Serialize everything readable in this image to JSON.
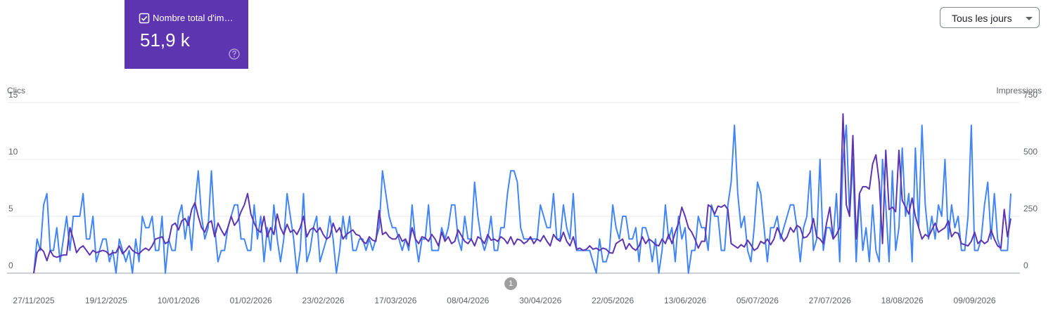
{
  "card": {
    "label": "Nombre total d'im…",
    "value": "51,9 k"
  },
  "dropdown": "Tous les jours",
  "chart_data": {
    "type": "line",
    "x": [
      "27/11/2025",
      "28/11/2025",
      "29/11/2025",
      "30/11/2025",
      "01/12/2025",
      "02/12/2025",
      "03/12/2025",
      "04/12/2025",
      "05/12/2025",
      "06/12/2025",
      "07/12/2025",
      "08/12/2025",
      "09/12/2025",
      "10/12/2025",
      "11/12/2025",
      "12/12/2025",
      "13/12/2025",
      "14/12/2025",
      "15/12/2025",
      "16/12/2025",
      "17/12/2025",
      "18/12/2025",
      "19/12/2025",
      "20/12/2025",
      "21/12/2025",
      "22/12/2025",
      "23/12/2025",
      "24/12/2025",
      "25/12/2025",
      "26/12/2025",
      "27/12/2025",
      "28/12/2025",
      "29/12/2025",
      "30/12/2025",
      "31/12/2025",
      "01/01/2026",
      "02/01/2026",
      "03/01/2026",
      "04/01/2026",
      "05/01/2026",
      "06/01/2026",
      "07/01/2026",
      "08/01/2026",
      "09/01/2026",
      "10/01/2026",
      "11/01/2026",
      "12/01/2026",
      "13/01/2026",
      "14/01/2026",
      "15/01/2026",
      "16/01/2026",
      "17/01/2026",
      "18/01/2026",
      "19/01/2026",
      "20/01/2026",
      "21/01/2026",
      "22/01/2026",
      "23/01/2026",
      "24/01/2026",
      "25/01/2026",
      "26/01/2026",
      "27/01/2026",
      "28/01/2026",
      "29/01/2026",
      "30/01/2026",
      "31/01/2026",
      "01/02/2026",
      "02/02/2026",
      "03/02/2026",
      "04/02/2026",
      "05/02/2026",
      "06/02/2026",
      "07/02/2026",
      "08/02/2026",
      "09/02/2026",
      "10/02/2026",
      "11/02/2026",
      "12/02/2026",
      "13/02/2026",
      "14/02/2026",
      "15/02/2026",
      "16/02/2026",
      "17/02/2026",
      "18/02/2026",
      "19/02/2026",
      "20/02/2026",
      "21/02/2026",
      "22/02/2026",
      "23/02/2026",
      "24/02/2026",
      "25/02/2026",
      "26/02/2026",
      "27/02/2026",
      "28/02/2026",
      "01/03/2026",
      "02/03/2026",
      "03/03/2026",
      "04/03/2026",
      "05/03/2026",
      "06/03/2026",
      "07/03/2026",
      "08/03/2026",
      "09/03/2026",
      "10/03/2026",
      "11/03/2026",
      "12/03/2026",
      "13/03/2026",
      "14/03/2026",
      "15/03/2026",
      "16/03/2026",
      "17/03/2026",
      "18/03/2026",
      "19/03/2026",
      "20/03/2026",
      "21/03/2026",
      "22/03/2026",
      "23/03/2026",
      "24/03/2026",
      "25/03/2026",
      "26/03/2026",
      "27/03/2026",
      "28/03/2026",
      "29/03/2026",
      "30/03/2026",
      "31/03/2026",
      "01/04/2026",
      "02/04/2026",
      "03/04/2026",
      "04/04/2026",
      "05/04/2026",
      "06/04/2026",
      "07/04/2026",
      "08/04/2026",
      "09/04/2026",
      "10/04/2026",
      "11/04/2026",
      "12/04/2026",
      "13/04/2026",
      "14/04/2026",
      "15/04/2026",
      "16/04/2026",
      "17/04/2026",
      "18/04/2026",
      "19/04/2026",
      "20/04/2026",
      "21/04/2026",
      "22/04/2026",
      "23/04/2026",
      "24/04/2026",
      "25/04/2026",
      "26/04/2026",
      "27/04/2026",
      "28/04/2026",
      "29/04/2026",
      "30/04/2026",
      "01/05/2026",
      "02/05/2026",
      "03/05/2026",
      "04/05/2026",
      "05/05/2026",
      "06/05/2026",
      "07/05/2026",
      "08/05/2026",
      "09/05/2026",
      "10/05/2026",
      "11/05/2026",
      "12/05/2026",
      "13/05/2026",
      "14/05/2026",
      "15/05/2026",
      "16/05/2026",
      "17/05/2026",
      "18/05/2026",
      "19/05/2026",
      "20/05/2026",
      "21/05/2026",
      "22/05/2026",
      "23/05/2026",
      "24/05/2026",
      "25/05/2026",
      "26/05/2026",
      "27/05/2026",
      "28/05/2026",
      "29/05/2026",
      "30/05/2026",
      "31/05/2026",
      "01/06/2026",
      "02/06/2026",
      "03/06/2026",
      "04/06/2026",
      "05/06/2026",
      "06/06/2026",
      "07/06/2026",
      "08/06/2026",
      "09/06/2026",
      "10/06/2026",
      "11/06/2026",
      "12/06/2026",
      "13/06/2026",
      "14/06/2026",
      "15/06/2026",
      "16/06/2026",
      "17/06/2026",
      "18/06/2026",
      "19/06/2026",
      "20/06/2026",
      "21/06/2026",
      "22/06/2026",
      "23/06/2026",
      "24/06/2026",
      "25/06/2026",
      "26/06/2026",
      "27/06/2026",
      "28/06/2026",
      "29/06/2026",
      "30/06/2026",
      "01/07/2026",
      "02/07/2026",
      "03/07/2026",
      "04/07/2026",
      "05/07/2026",
      "06/07/2026",
      "07/07/2026",
      "08/07/2026",
      "09/07/2026",
      "10/07/2026",
      "11/07/2026",
      "12/07/2026",
      "13/07/2026",
      "14/07/2026",
      "15/07/2026",
      "16/07/2026",
      "17/07/2026",
      "18/07/2026",
      "19/07/2026",
      "20/07/2026",
      "21/07/2026",
      "22/07/2026",
      "23/07/2026",
      "24/07/2026",
      "25/07/2026",
      "26/07/2026",
      "27/07/2026",
      "28/07/2026",
      "29/07/2026",
      "30/07/2026",
      "31/07/2026",
      "01/08/2026",
      "02/08/2026",
      "03/08/2026",
      "04/08/2026",
      "05/08/2026",
      "06/08/2026",
      "07/08/2026",
      "08/08/2026",
      "09/08/2026",
      "10/08/2026",
      "11/08/2026",
      "12/08/2026",
      "13/08/2026",
      "14/08/2026",
      "15/08/2026",
      "16/08/2026",
      "17/08/2026",
      "18/08/2026",
      "19/08/2026",
      "20/08/2026",
      "21/08/2026",
      "22/08/2026",
      "23/08/2026",
      "24/08/2026",
      "25/08/2026",
      "26/08/2026",
      "27/08/2026",
      "28/08/2026",
      "29/08/2026",
      "30/08/2026",
      "31/08/2026",
      "01/09/2026",
      "02/09/2026",
      "03/09/2026",
      "04/09/2026",
      "05/09/2026",
      "06/09/2026",
      "07/09/2026",
      "08/09/2026",
      "09/09/2026",
      "10/09/2026",
      "11/09/2026",
      "12/09/2026",
      "13/09/2026",
      "14/09/2026",
      "15/09/2026",
      "16/09/2026",
      "17/09/2026",
      "18/09/2026",
      "19/09/2026",
      "20/09/2026"
    ],
    "xticks": [
      "27/11/2025",
      "19/12/2025",
      "10/01/2026",
      "01/02/2026",
      "23/02/2026",
      "17/03/2026",
      "08/04/2026",
      "30/04/2026",
      "22/05/2026",
      "13/06/2026",
      "05/07/2026",
      "27/07/2026",
      "18/08/2026",
      "09/09/2026"
    ],
    "series": [
      {
        "name": "Clics",
        "color": "#4285f4",
        "values": [
          0,
          3,
          2,
          6,
          7,
          2,
          2,
          4,
          1,
          3,
          5,
          2,
          5,
          5,
          5,
          7,
          3,
          3,
          5,
          1,
          2,
          3,
          3,
          1,
          2,
          0,
          3,
          2,
          1,
          2,
          0,
          3,
          1,
          5,
          4,
          4,
          5,
          2,
          2,
          5,
          0,
          3,
          2,
          2,
          5,
          6,
          3,
          5,
          2,
          6,
          9,
          5,
          3,
          4,
          9,
          4,
          1,
          2,
          2,
          4,
          5,
          6,
          6,
          3,
          3,
          2,
          2,
          6,
          3,
          5,
          1,
          4,
          2,
          6,
          3,
          1,
          3,
          7,
          5,
          3,
          0,
          2,
          7,
          1,
          2,
          4,
          5,
          1,
          2,
          3,
          5,
          3,
          0,
          2,
          5,
          3,
          5,
          2,
          2,
          3,
          3,
          2,
          3,
          2,
          3,
          4,
          9,
          7,
          5,
          4,
          4,
          3,
          2,
          3,
          2,
          6,
          3,
          1,
          3,
          3,
          6,
          2,
          2,
          2,
          4,
          3,
          4,
          6,
          6,
          3,
          2,
          5,
          3,
          3,
          8,
          5,
          3,
          2,
          3,
          5,
          2,
          2,
          4,
          4,
          7,
          9,
          9,
          8,
          4,
          3,
          3,
          3,
          3,
          3,
          6,
          5,
          4,
          4,
          7,
          3,
          3,
          6,
          4,
          3,
          7,
          2,
          2,
          2,
          2,
          2,
          1,
          0,
          3,
          1,
          1,
          2,
          6,
          4,
          3,
          5,
          5,
          3,
          3,
          4,
          1,
          4,
          4,
          3,
          1,
          3,
          0,
          2,
          6,
          3,
          4,
          1,
          5,
          3,
          4,
          0,
          2,
          2,
          5,
          4,
          4,
          2,
          6,
          5,
          5,
          2,
          2,
          6,
          8,
          13,
          7,
          4,
          5,
          2,
          1,
          4,
          8,
          7,
          4,
          1,
          4,
          4,
          5,
          3,
          4,
          5,
          6,
          6,
          4,
          1,
          4,
          5,
          9,
          2,
          3,
          10,
          2,
          4,
          4,
          3,
          7,
          1,
          10,
          13,
          5,
          10,
          1,
          7,
          2,
          4,
          1,
          6,
          2,
          1,
          10,
          6,
          1,
          9,
          2,
          4,
          11,
          5,
          7,
          1,
          11,
          4,
          13,
          6,
          3,
          5,
          3,
          6,
          5,
          10,
          3,
          6,
          4,
          5,
          2,
          2,
          5,
          13,
          2,
          2,
          3,
          6,
          8,
          3,
          7,
          3,
          2,
          2,
          2,
          7
        ]
      },
      {
        "name": "Impressions",
        "color": "#5e35b1",
        "axis": "y2",
        "values": [
          0,
          90,
          110,
          95,
          55,
          100,
          75,
          70,
          75,
          80,
          80,
          200,
          150,
          90,
          110,
          120,
          100,
          80,
          100,
          90,
          95,
          100,
          95,
          80,
          90,
          90,
          120,
          85,
          100,
          120,
          100,
          90,
          85,
          100,
          110,
          100,
          120,
          150,
          155,
          160,
          130,
          140,
          210,
          220,
          190,
          230,
          240,
          210,
          280,
          310,
          250,
          200,
          180,
          220,
          230,
          160,
          220,
          190,
          165,
          200,
          250,
          210,
          230,
          270,
          300,
          350,
          260,
          220,
          190,
          180,
          250,
          160,
          200,
          170,
          260,
          200,
          170,
          215,
          180,
          190,
          170,
          200,
          250,
          160,
          190,
          200,
          180,
          200,
          170,
          150,
          160,
          220,
          180,
          200,
          150,
          170,
          180,
          190,
          170,
          165,
          140,
          130,
          160,
          145,
          140,
          275,
          170,
          180,
          160,
          150,
          150,
          170,
          140,
          150,
          120,
          200,
          150,
          130,
          160,
          155,
          140,
          170,
          150,
          120,
          180,
          140,
          160,
          130,
          140,
          190,
          165,
          140,
          130,
          150,
          120,
          160,
          150,
          130,
          170,
          145,
          150,
          140,
          160,
          150,
          130,
          160,
          125,
          150,
          145,
          130,
          140,
          160,
          130,
          150,
          140,
          165,
          140,
          120,
          170,
          150,
          140,
          180,
          140,
          120,
          160,
          105,
          110,
          100,
          105,
          120,
          105,
          110,
          100,
          110,
          105,
          90,
          88,
          130,
          140,
          150,
          105,
          130,
          110,
          100,
          120,
          160,
          130,
          150,
          140,
          125,
          120,
          150,
          130,
          170,
          130,
          180,
          220,
          290,
          250,
          200,
          180,
          150,
          110,
          140,
          140,
          300,
          290,
          260,
          295,
          290,
          300,
          280,
          130,
          120,
          110,
          125,
          115,
          145,
          125,
          100,
          110,
          140,
          130,
          150,
          125,
          150,
          200,
          170,
          140,
          160,
          200,
          180,
          210,
          200,
          155,
          160,
          180,
          240,
          160,
          150,
          130,
          220,
          290,
          150,
          170,
          200,
          700,
          300,
          250,
          605,
          150,
          350,
          380,
          380,
          370,
          480,
          520,
          400,
          130,
          540,
          280,
          290,
          270,
          540,
          320,
          290,
          260,
          330,
          250,
          200,
          150,
          170,
          160,
          190,
          220,
          180,
          190,
          200,
          230,
          160,
          180,
          175,
          130,
          125,
          120,
          140,
          180,
          130,
          145,
          130,
          140,
          190,
          150,
          120,
          110,
          280,
          160,
          240
        ]
      }
    ],
    "ylim": [
      0,
      15
    ],
    "yticks": [
      0,
      5,
      10,
      15
    ],
    "y2lim": [
      0,
      750
    ],
    "y2ticks": [
      0,
      250,
      500,
      750
    ],
    "grid": true,
    "annotations": [
      {
        "x": "21/04/2026",
        "label": "1"
      }
    ]
  }
}
